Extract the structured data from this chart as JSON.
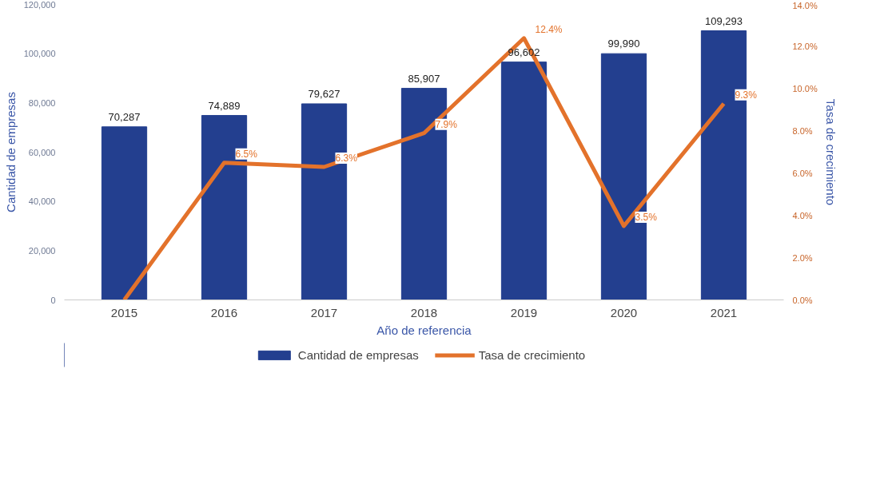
{
  "chart_data": {
    "type": "bar",
    "categories": [
      "2015",
      "2016",
      "2017",
      "2018",
      "2019",
      "2020",
      "2021"
    ],
    "xlabel": "Año de referencia",
    "ylabel": "Cantidad de empresas",
    "y2label": "Tasa de crecimiento",
    "series": [
      {
        "name": "Cantidad de empresas",
        "color": "#233f8f",
        "values": [
          70287,
          74889,
          79627,
          85907,
          96602,
          99990,
          109293
        ],
        "value_labels": [
          "70,287",
          "74,889",
          "79,627",
          "85,907",
          "96,602",
          "99,990",
          "109,293"
        ]
      },
      {
        "name": "Tasa de crecimiento",
        "type": "line",
        "axis": "y2",
        "color": "#e3722b",
        "values": [
          0,
          6.5,
          6.3,
          7.9,
          12.4,
          3.5,
          9.3
        ],
        "value_labels": [
          null,
          "6.5%",
          "6.3%",
          "7.9%",
          "12.4%",
          "3.5%",
          "9.3%"
        ]
      }
    ],
    "ylim": [
      0,
      120000
    ],
    "yticks": [
      {
        "value": 0,
        "label": "0"
      },
      {
        "value": 20000,
        "label": "20,000"
      },
      {
        "value": 40000,
        "label": "40,000"
      },
      {
        "value": 60000,
        "label": "60,000"
      },
      {
        "value": 80000,
        "label": "80,000"
      },
      {
        "value": 100000,
        "label": "100,000"
      },
      {
        "value": 120000,
        "label": "120,000"
      }
    ],
    "y2lim": [
      0,
      14
    ],
    "y2ticks": [
      {
        "value": 0,
        "label": "0.0%"
      },
      {
        "value": 2,
        "label": "2.0%"
      },
      {
        "value": 4,
        "label": "4.0%"
      },
      {
        "value": 6,
        "label": "6.0%"
      },
      {
        "value": 8,
        "label": "8.0%"
      },
      {
        "value": 10,
        "label": "10.0%"
      },
      {
        "value": 12,
        "label": "12.0%"
      },
      {
        "value": 14,
        "label": "14.0%"
      }
    ],
    "grid": false,
    "legend": "bottom",
    "marker": "none",
    "line_style": "solid"
  }
}
